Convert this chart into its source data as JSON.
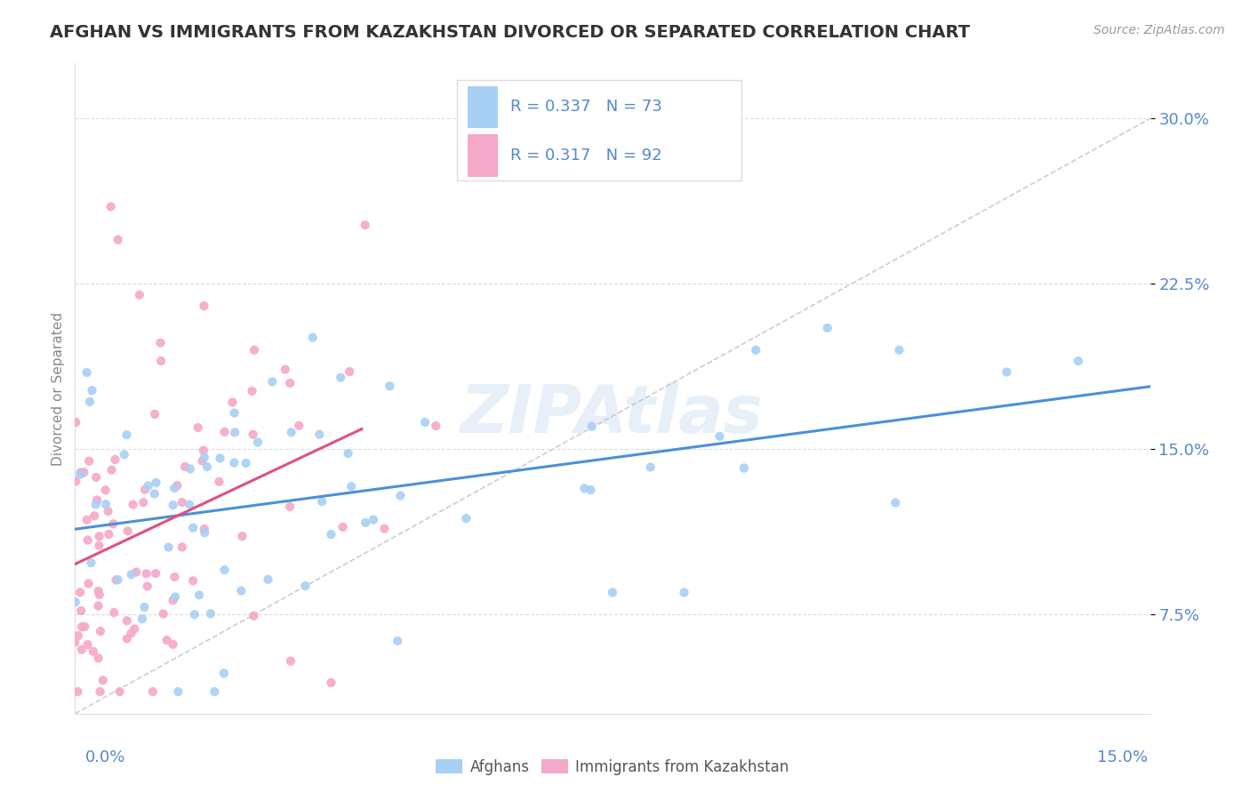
{
  "title": "AFGHAN VS IMMIGRANTS FROM KAZAKHSTAN DIVORCED OR SEPARATED CORRELATION CHART",
  "source": "Source: ZipAtlas.com",
  "ylabel": "Divorced or Separated",
  "y_ticks": [
    0.075,
    0.15,
    0.225,
    0.3
  ],
  "y_tick_labels": [
    "7.5%",
    "15.0%",
    "22.5%",
    "30.0%"
  ],
  "x_lim": [
    0.0,
    0.15
  ],
  "y_lim": [
    0.03,
    0.325
  ],
  "afghans_R": 0.337,
  "afghans_N": 73,
  "kaz_R": 0.317,
  "kaz_N": 92,
  "afghans_color": "#a8d0f5",
  "kaz_color": "#f5a8c8",
  "afghans_line_color": "#4a90d9",
  "kaz_line_color": "#e05080",
  "diagonal_color": "#c8c8c8",
  "tick_color": "#5588cc",
  "watermark_color": "#a0c0e8",
  "background_color": "#ffffff",
  "border_color": "#dddddd"
}
